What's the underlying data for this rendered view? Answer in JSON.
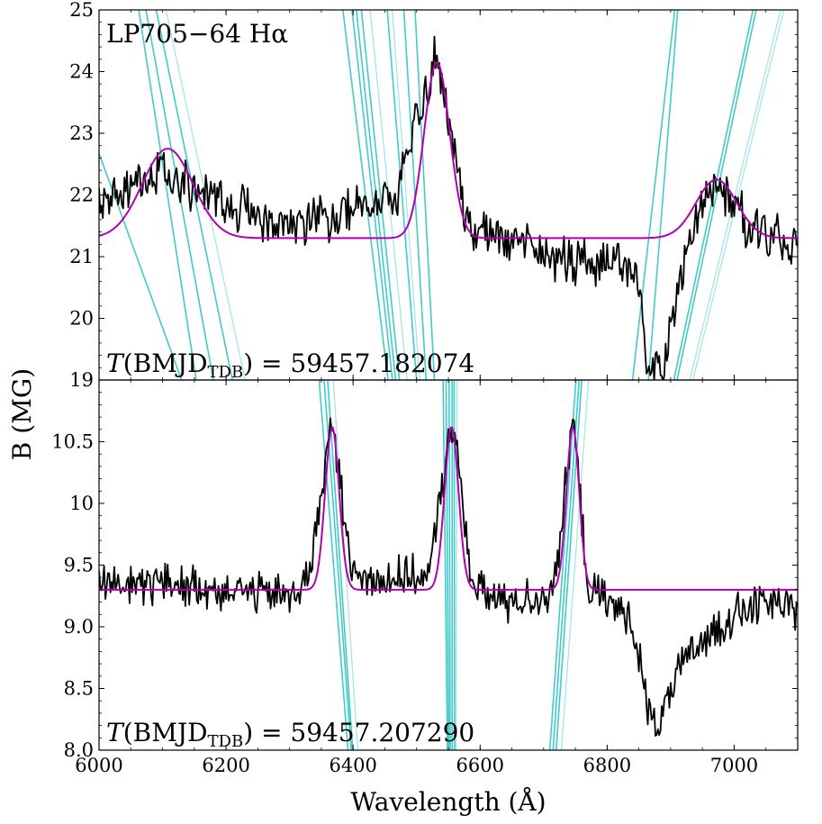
{
  "figure": {
    "ylabel": "B (MG)",
    "xlabel": "Wavelength (Å)"
  },
  "colors": {
    "spectrum": "#000000",
    "model": "#b000b0",
    "tracks": "#2ec4c4",
    "tracks_light": "#8fe0e0"
  },
  "chart_data": [
    {
      "type": "line",
      "panel": "top",
      "title": "LP705−64 Hα",
      "annotation": {
        "italic": "T",
        "open": "(BMJD",
        "sub": "TDB",
        "close": ") = 59457.182074"
      },
      "xlim": [
        6000,
        7100
      ],
      "ylim": [
        19,
        25
      ],
      "xticks": [
        6000,
        6200,
        6400,
        6600,
        6800,
        7000
      ],
      "yticks": [
        19,
        20,
        21,
        22,
        23,
        24,
        25
      ],
      "ytick_labels": [
        "19",
        "20",
        "21",
        "22",
        "23",
        "24",
        "25"
      ],
      "model": {
        "name": "fit",
        "baseline": 21.3,
        "peaks": [
          {
            "center": 6108,
            "height": 1.45,
            "sigma": 40
          },
          {
            "center": 6532,
            "height": 2.85,
            "sigma": 20
          },
          {
            "center": 6972,
            "height": 0.95,
            "sigma": 32
          }
        ]
      },
      "spectrum": {
        "name": "observed",
        "noise": 0.32,
        "gaps": [
          [
            6860,
            6900
          ]
        ],
        "anchors": [
          [
            6000,
            21.8
          ],
          [
            6100,
            22.4
          ],
          [
            6240,
            21.7
          ],
          [
            6280,
            21.5
          ],
          [
            6380,
            21.7
          ],
          [
            6470,
            22.0
          ],
          [
            6530,
            24.3
          ],
          [
            6580,
            21.5
          ],
          [
            6680,
            21.2
          ],
          [
            6720,
            21.0
          ],
          [
            6740,
            20.9
          ],
          [
            6760,
            20.9
          ],
          [
            6790,
            20.85
          ],
          [
            6820,
            20.9
          ],
          [
            6850,
            20.7
          ],
          [
            6858,
            19.6
          ],
          [
            6872,
            19.1
          ],
          [
            6890,
            19.2
          ],
          [
            6900,
            19.8
          ],
          [
            6930,
            21.4
          ],
          [
            6970,
            22.2
          ],
          [
            7030,
            21.4
          ],
          [
            7100,
            21.2
          ]
        ]
      },
      "tracks": [
        {
          "points": [
            [
              5900,
              25.5
            ],
            [
              6130,
              19
            ]
          ],
          "light": false
        },
        {
          "points": [
            [
              6055,
              25.5
            ],
            [
              6153,
              19
            ]
          ],
          "light": false
        },
        {
          "points": [
            [
              6065,
              25.5
            ],
            [
              6180,
              19
            ]
          ],
          "light": false
        },
        {
          "points": [
            [
              6080,
              25.5
            ],
            [
              6210,
              19
            ]
          ],
          "light": false
        },
        {
          "points": [
            [
              6095,
              25.5
            ],
            [
              6230,
              19
            ]
          ],
          "light": true
        },
        {
          "points": [
            [
              6378,
              25.5
            ],
            [
              6455,
              19
            ]
          ],
          "light": false
        },
        {
          "points": [
            [
              6393,
              25.5
            ],
            [
              6462,
              19
            ]
          ],
          "light": false
        },
        {
          "points": [
            [
              6400,
              25.5
            ],
            [
              6467,
              19
            ]
          ],
          "light": false
        },
        {
          "points": [
            [
              6408,
              25.5
            ],
            [
              6473,
              19
            ]
          ],
          "light": false
        },
        {
          "points": [
            [
              6422,
              25.5
            ],
            [
              6485,
              19
            ]
          ],
          "light": true
        },
        {
          "points": [
            [
              6450,
              25.5
            ],
            [
              6500,
              19
            ]
          ],
          "light": false
        },
        {
          "points": [
            [
              6458,
              25.5
            ],
            [
              6505,
              19
            ]
          ],
          "light": true
        },
        {
          "points": [
            [
              6477,
              25.5
            ],
            [
              6515,
              19
            ]
          ],
          "light": false
        },
        {
          "points": [
            [
              6495,
              25.5
            ],
            [
              6528,
              19
            ]
          ],
          "light": false
        },
        {
          "points": [
            [
              6840,
              19
            ],
            [
              6912,
              25.5
            ]
          ],
          "light": false
        },
        {
          "points": [
            [
              6865,
              19
            ],
            [
              6915,
              25.5
            ]
          ],
          "light": false
        },
        {
          "points": [
            [
              6905,
              19
            ],
            [
              7040,
              25.5
            ]
          ],
          "light": false
        },
        {
          "points": [
            [
              6910,
              19
            ],
            [
              7045,
              25.5
            ]
          ],
          "light": false
        },
        {
          "points": [
            [
              6935,
              19
            ],
            [
              7090,
              25.5
            ]
          ],
          "light": true
        },
        {
          "points": [
            [
              6930,
              19
            ],
            [
              7085,
              25.5
            ]
          ],
          "light": true
        }
      ]
    },
    {
      "type": "line",
      "panel": "bottom",
      "annotation": {
        "italic": "T",
        "open": "(BMJD",
        "sub": "TDB",
        "close": ") = 59457.207290"
      },
      "xlim": [
        6000,
        7100
      ],
      "ylim": [
        8.0,
        11.0
      ],
      "xticks": [
        6000,
        6200,
        6400,
        6600,
        6800,
        7000
      ],
      "xtick_labels": [
        "6000",
        "6200",
        "6400",
        "6600",
        "6800",
        "7000"
      ],
      "yticks": [
        8.0,
        8.5,
        9.0,
        9.5,
        10.0,
        10.5
      ],
      "ytick_labels": [
        "8.0",
        "8.5",
        "9.0",
        "9.5",
        "10",
        "10.5"
      ],
      "model": {
        "name": "fit",
        "baseline": 9.3,
        "peaks": [
          {
            "center": 6367,
            "height": 1.32,
            "sigma": 11
          },
          {
            "center": 6555,
            "height": 1.32,
            "sigma": 11
          },
          {
            "center": 6746,
            "height": 1.32,
            "sigma": 10
          }
        ]
      },
      "spectrum": {
        "name": "observed",
        "noise": 0.14,
        "gaps": [
          [
            6860,
            6880
          ]
        ],
        "anchors": [
          [
            6000,
            9.35
          ],
          [
            6100,
            9.35
          ],
          [
            6200,
            9.3
          ],
          [
            6300,
            9.25
          ],
          [
            6330,
            9.4
          ],
          [
            6367,
            10.65
          ],
          [
            6400,
            9.4
          ],
          [
            6520,
            9.4
          ],
          [
            6555,
            10.7
          ],
          [
            6590,
            9.3
          ],
          [
            6640,
            9.2
          ],
          [
            6700,
            9.25
          ],
          [
            6720,
            9.4
          ],
          [
            6746,
            10.7
          ],
          [
            6770,
            9.3
          ],
          [
            6800,
            9.2
          ],
          [
            6840,
            9.05
          ],
          [
            6855,
            8.6
          ],
          [
            6870,
            8.2
          ],
          [
            6890,
            8.3
          ],
          [
            6910,
            8.6
          ],
          [
            6950,
            8.9
          ],
          [
            7000,
            9.1
          ],
          [
            7050,
            9.2
          ],
          [
            7100,
            9.15
          ]
        ]
      },
      "tracks": [
        {
          "points": [
            [
              6342,
              11.3
            ],
            [
              6395,
              7.8
            ]
          ],
          "light": false
        },
        {
          "points": [
            [
              6350,
              11.3
            ],
            [
              6400,
              7.8
            ]
          ],
          "light": false
        },
        {
          "points": [
            [
              6356,
              11.3
            ],
            [
              6402,
              7.8
            ]
          ],
          "light": false
        },
        {
          "points": [
            [
              6365,
              11.3
            ],
            [
              6410,
              7.8
            ]
          ],
          "light": true
        },
        {
          "points": [
            [
              6541,
              11.3
            ],
            [
              6549,
              7.8
            ]
          ],
          "light": false
        },
        {
          "points": [
            [
              6546,
              11.3
            ],
            [
              6551,
              7.8
            ]
          ],
          "light": false
        },
        {
          "points": [
            [
              6551,
              11.3
            ],
            [
              6553,
              7.8
            ]
          ],
          "light": false
        },
        {
          "points": [
            [
              6556,
              11.3
            ],
            [
              6556,
              7.8
            ]
          ],
          "light": false
        },
        {
          "points": [
            [
              6559,
              11.3
            ],
            [
              6560,
              7.8
            ]
          ],
          "light": false
        },
        {
          "points": [
            [
              6564,
              11.3
            ],
            [
              6562,
              7.8
            ]
          ],
          "light": true
        },
        {
          "points": [
            [
              6707,
              7.8
            ],
            [
              6755,
              11.3
            ]
          ],
          "light": false
        },
        {
          "points": [
            [
              6712,
              7.8
            ],
            [
              6760,
              11.3
            ]
          ],
          "light": false
        },
        {
          "points": [
            [
              6717,
              7.8
            ],
            [
              6764,
              11.3
            ]
          ],
          "light": false
        },
        {
          "points": [
            [
              6725,
              7.8
            ],
            [
              6775,
              11.3
            ]
          ],
          "light": true
        }
      ]
    }
  ]
}
